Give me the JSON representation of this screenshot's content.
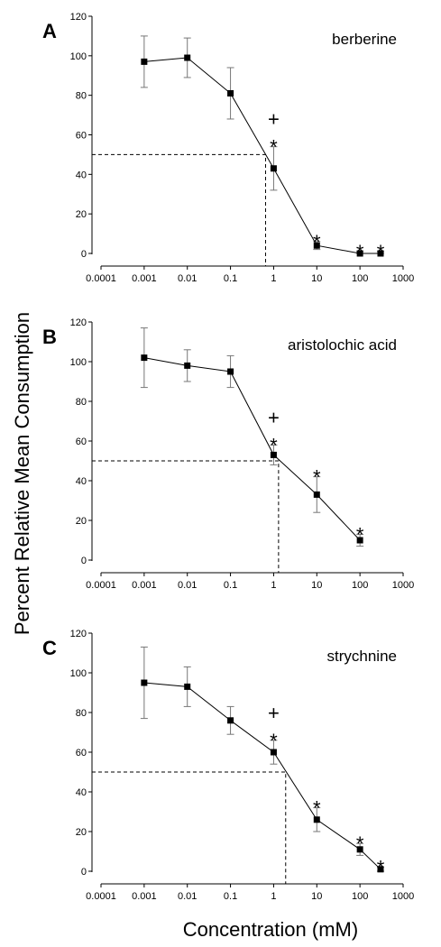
{
  "figure": {
    "ylabel": "Percent Relative Mean Consumption",
    "xlabel": "Concentration (mM)"
  },
  "chart_data": [
    {
      "type": "line",
      "panel": "A",
      "title": "berberine",
      "xscale": "log",
      "xlim": [
        0.0001,
        1000
      ],
      "ylim": [
        0,
        120
      ],
      "xticks": [
        "0.0001",
        "0.001",
        "0.01",
        "0.1",
        "1",
        "10",
        "100",
        "1000"
      ],
      "yticks": [
        "0",
        "20",
        "40",
        "60",
        "80",
        "100",
        "120"
      ],
      "x": [
        0.001,
        0.01,
        0.1,
        1,
        10,
        100,
        300
      ],
      "y": [
        97,
        99,
        81,
        43,
        4,
        0,
        0
      ],
      "error": [
        13,
        10,
        13,
        11,
        2,
        1,
        1
      ],
      "markers": [
        {
          "x": 1,
          "symbols": [
            "+",
            "*"
          ]
        },
        {
          "x": 10,
          "symbols": [
            "*"
          ]
        },
        {
          "x": 100,
          "symbols": [
            "*"
          ]
        },
        {
          "x": 300,
          "symbols": [
            "*"
          ]
        }
      ],
      "reference": {
        "x": 0.65,
        "y": 50
      }
    },
    {
      "type": "line",
      "panel": "B",
      "title": "aristolochic acid",
      "xscale": "log",
      "xlim": [
        0.0001,
        1000
      ],
      "ylim": [
        0,
        120
      ],
      "xticks": [
        "0.0001",
        "0.001",
        "0.01",
        "0.1",
        "1",
        "10",
        "100",
        "1000"
      ],
      "yticks": [
        "0",
        "20",
        "40",
        "60",
        "80",
        "100",
        "120"
      ],
      "x": [
        0.001,
        0.01,
        0.1,
        1,
        10,
        100
      ],
      "y": [
        102,
        98,
        95,
        53,
        33,
        10
      ],
      "error": [
        15,
        8,
        8,
        5,
        9,
        3
      ],
      "markers": [
        {
          "x": 1,
          "symbols": [
            "+",
            "*"
          ]
        },
        {
          "x": 10,
          "symbols": [
            "*"
          ]
        },
        {
          "x": 100,
          "symbols": [
            "*"
          ]
        }
      ],
      "reference": {
        "x": 1.3,
        "y": 50
      }
    },
    {
      "type": "line",
      "panel": "C",
      "title": "strychnine",
      "xscale": "log",
      "xlim": [
        0.0001,
        1000
      ],
      "ylim": [
        0,
        120
      ],
      "xticks": [
        "0.0001",
        "0.001",
        "0.01",
        "0.1",
        "1",
        "10",
        "100",
        "1000"
      ],
      "yticks": [
        "0",
        "20",
        "40",
        "60",
        "80",
        "100",
        "120"
      ],
      "x": [
        0.001,
        0.01,
        0.1,
        1,
        10,
        100,
        300
      ],
      "y": [
        95,
        93,
        76,
        60,
        26,
        11,
        1
      ],
      "error": [
        18,
        10,
        7,
        6,
        6,
        3,
        1
      ],
      "markers": [
        {
          "x": 1,
          "symbols": [
            "+",
            "*"
          ]
        },
        {
          "x": 10,
          "symbols": [
            "*"
          ]
        },
        {
          "x": 100,
          "symbols": [
            "*"
          ]
        },
        {
          "x": 300,
          "symbols": [
            "*"
          ]
        }
      ],
      "reference": {
        "x": 1.9,
        "y": 50
      }
    }
  ]
}
